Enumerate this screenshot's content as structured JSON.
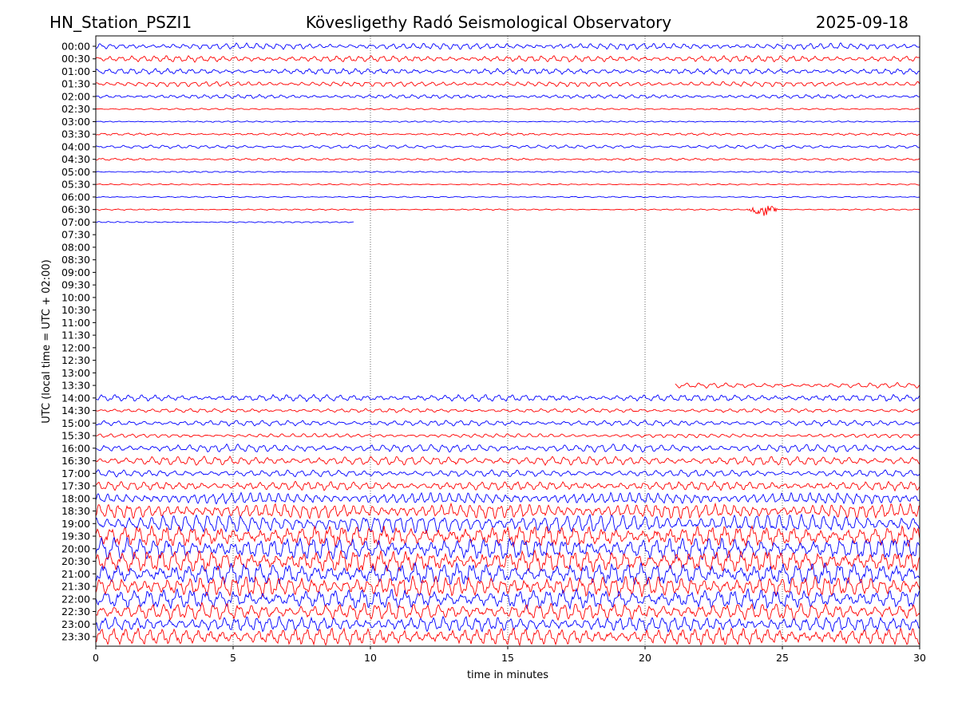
{
  "header": {
    "station": "HN_Station_PSZI1",
    "observatory": "Kövesligethy Radó Seismological Observatory",
    "date": "2025-09-18"
  },
  "chart_data": {
    "type": "line",
    "xlabel": "time in minutes",
    "ylabel": "UTC (local time = UTC + 02:00)",
    "xlim": [
      0,
      30
    ],
    "x_ticks": [
      "0",
      "5",
      "10",
      "15",
      "20",
      "25",
      "30"
    ],
    "vertical_gridlines_minutes": [
      5,
      10,
      15,
      20,
      25
    ],
    "grid": "dotted vertical lines",
    "trace_colors": [
      "#0000ff",
      "#ff0000"
    ],
    "rows": [
      {
        "label": "00:00",
        "start": 0,
        "end": 30,
        "amp": 0.55
      },
      {
        "label": "00:30",
        "start": 0,
        "end": 30,
        "amp": 0.55
      },
      {
        "label": "01:00",
        "start": 0,
        "end": 30,
        "amp": 0.5
      },
      {
        "label": "01:30",
        "start": 0,
        "end": 30,
        "amp": 0.45
      },
      {
        "label": "02:00",
        "start": 0,
        "end": 30,
        "amp": 0.35
      },
      {
        "label": "02:30",
        "start": 0,
        "end": 30,
        "amp": 0.15
      },
      {
        "label": "03:00",
        "start": 0,
        "end": 30,
        "amp": 0.12
      },
      {
        "label": "03:30",
        "start": 0,
        "end": 30,
        "amp": 0.2
      },
      {
        "label": "04:00",
        "start": 0,
        "end": 30,
        "amp": 0.3
      },
      {
        "label": "04:30",
        "start": 0,
        "end": 30,
        "amp": 0.2
      },
      {
        "label": "05:00",
        "start": 0,
        "end": 30,
        "amp": 0.12
      },
      {
        "label": "05:30",
        "start": 0,
        "end": 30,
        "amp": 0.05
      },
      {
        "label": "06:00",
        "start": 0,
        "end": 30,
        "amp": 0.05
      },
      {
        "label": "06:30",
        "start": 0,
        "end": 30,
        "amp": 0.05,
        "event_minute": 24.3
      },
      {
        "label": "07:00",
        "start": 0,
        "end": 9.4,
        "amp": 0.1
      },
      {
        "label": "07:30",
        "start": null,
        "end": null,
        "amp": 0
      },
      {
        "label": "08:00",
        "start": null,
        "end": null,
        "amp": 0
      },
      {
        "label": "08:30",
        "start": null,
        "end": null,
        "amp": 0
      },
      {
        "label": "09:00",
        "start": null,
        "end": null,
        "amp": 0
      },
      {
        "label": "09:30",
        "start": null,
        "end": null,
        "amp": 0
      },
      {
        "label": "10:00",
        "start": null,
        "end": null,
        "amp": 0
      },
      {
        "label": "10:30",
        "start": null,
        "end": null,
        "amp": 0
      },
      {
        "label": "11:00",
        "start": null,
        "end": null,
        "amp": 0
      },
      {
        "label": "11:30",
        "start": null,
        "end": null,
        "amp": 0
      },
      {
        "label": "12:00",
        "start": null,
        "end": null,
        "amp": 0
      },
      {
        "label": "12:30",
        "start": null,
        "end": null,
        "amp": 0
      },
      {
        "label": "13:00",
        "start": null,
        "end": null,
        "amp": 0
      },
      {
        "label": "13:30",
        "start": 21.1,
        "end": 30,
        "amp": 0.45
      },
      {
        "label": "14:00",
        "start": 0,
        "end": 30,
        "amp": 0.6
      },
      {
        "label": "14:30",
        "start": 0,
        "end": 30,
        "amp": 0.35
      },
      {
        "label": "15:00",
        "start": 0,
        "end": 30,
        "amp": 0.5
      },
      {
        "label": "15:30",
        "start": 0,
        "end": 30,
        "amp": 0.35
      },
      {
        "label": "16:00",
        "start": 0,
        "end": 30,
        "amp": 0.7
      },
      {
        "label": "16:30",
        "start": 0,
        "end": 30,
        "amp": 0.8
      },
      {
        "label": "17:00",
        "start": 0,
        "end": 30,
        "amp": 0.6
      },
      {
        "label": "17:30",
        "start": 0,
        "end": 30,
        "amp": 0.8
      },
      {
        "label": "18:00",
        "start": 0,
        "end": 30,
        "amp": 1.0
      },
      {
        "label": "18:30",
        "start": 0,
        "end": 30,
        "amp": 1.3
      },
      {
        "label": "19:00",
        "start": 0,
        "end": 30,
        "amp": 1.6
      },
      {
        "label": "19:30",
        "start": 0,
        "end": 30,
        "amp": 1.8
      },
      {
        "label": "20:00",
        "start": 0,
        "end": 30,
        "amp": 1.9
      },
      {
        "label": "20:30",
        "start": 0,
        "end": 30,
        "amp": 1.9
      },
      {
        "label": "21:00",
        "start": 0,
        "end": 30,
        "amp": 1.9
      },
      {
        "label": "21:30",
        "start": 0,
        "end": 30,
        "amp": 1.8
      },
      {
        "label": "22:00",
        "start": 0,
        "end": 30,
        "amp": 1.7
      },
      {
        "label": "22:30",
        "start": 0,
        "end": 30,
        "amp": 1.5
      },
      {
        "label": "23:00",
        "start": 0,
        "end": 30,
        "amp": 1.3
      },
      {
        "label": "23:30",
        "start": 0,
        "end": 30,
        "amp": 1.5
      }
    ]
  }
}
